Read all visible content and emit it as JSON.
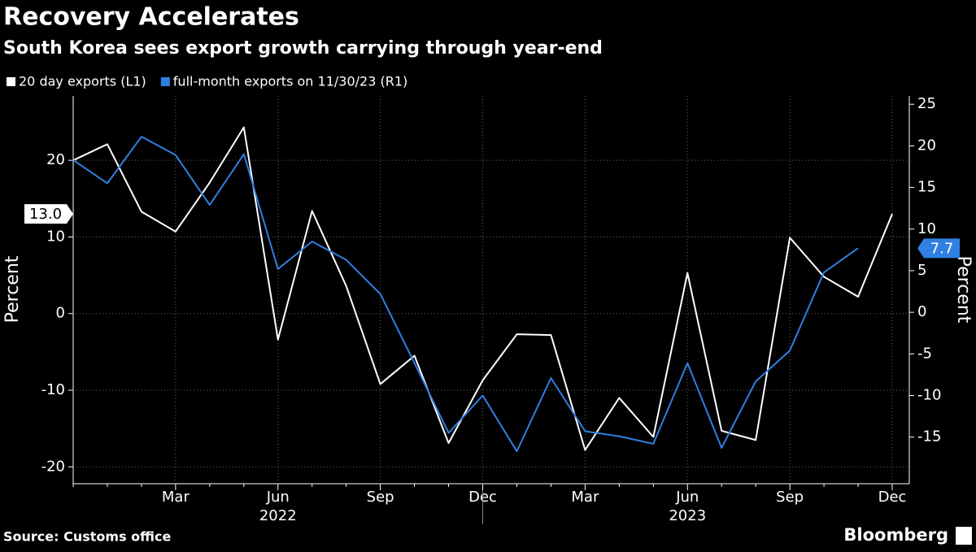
{
  "chart_data": {
    "type": "line",
    "title": "Recovery Accelerates",
    "subtitle": "South Korea sees export growth carrying through year-end",
    "source": "Source: Customs office",
    "brand": "Bloomberg",
    "ylabel": "Percent",
    "y2label": "Percent",
    "categories": [
      null,
      null,
      null,
      "Mar",
      null,
      null,
      "Jun",
      null,
      null,
      "Sep",
      null,
      null,
      "Dec",
      null,
      null,
      "Mar",
      null,
      null,
      "Jun",
      null,
      null,
      "Sep",
      null,
      null,
      "Dec"
    ],
    "x_groups": [
      {
        "label": "2022"
      },
      {
        "label": "2023"
      }
    ],
    "series": [
      {
        "name": "20 day exports (L1)",
        "color": "#ffffff",
        "axis": "y",
        "last_label": "13.0",
        "values": [
          20.0,
          22.1,
          13.3,
          10.7,
          17.1,
          24.3,
          -3.4,
          13.4,
          3.6,
          -9.2,
          -5.5,
          -16.9,
          -8.7,
          -2.7,
          -2.8,
          -17.8,
          -11.0,
          -16.1,
          5.3,
          -15.3,
          -16.5,
          9.9,
          4.8,
          2.2,
          13.0
        ]
      },
      {
        "name": "full-month exports on 11/30/23 (R1)",
        "color": "#2f80e0",
        "axis": "y2",
        "last_label": "7.7",
        "values": [
          18.3,
          15.5,
          21.1,
          18.9,
          12.9,
          19.0,
          5.2,
          8.5,
          6.3,
          2.2,
          -6.1,
          -14.5,
          -10.0,
          -16.7,
          -7.9,
          -14.3,
          -14.9,
          -15.8,
          -6.1,
          -16.3,
          -8.3,
          -4.6,
          4.8,
          7.7,
          null
        ]
      }
    ],
    "ylim": [
      -22.2,
      28.4
    ],
    "yticks": [
      -20,
      -10,
      0,
      10,
      20
    ],
    "y2lim": [
      -20.6,
      26.0
    ],
    "y2ticks": [
      -15,
      -10,
      -5,
      0,
      5,
      10,
      15,
      20,
      25
    ],
    "grid": true
  }
}
